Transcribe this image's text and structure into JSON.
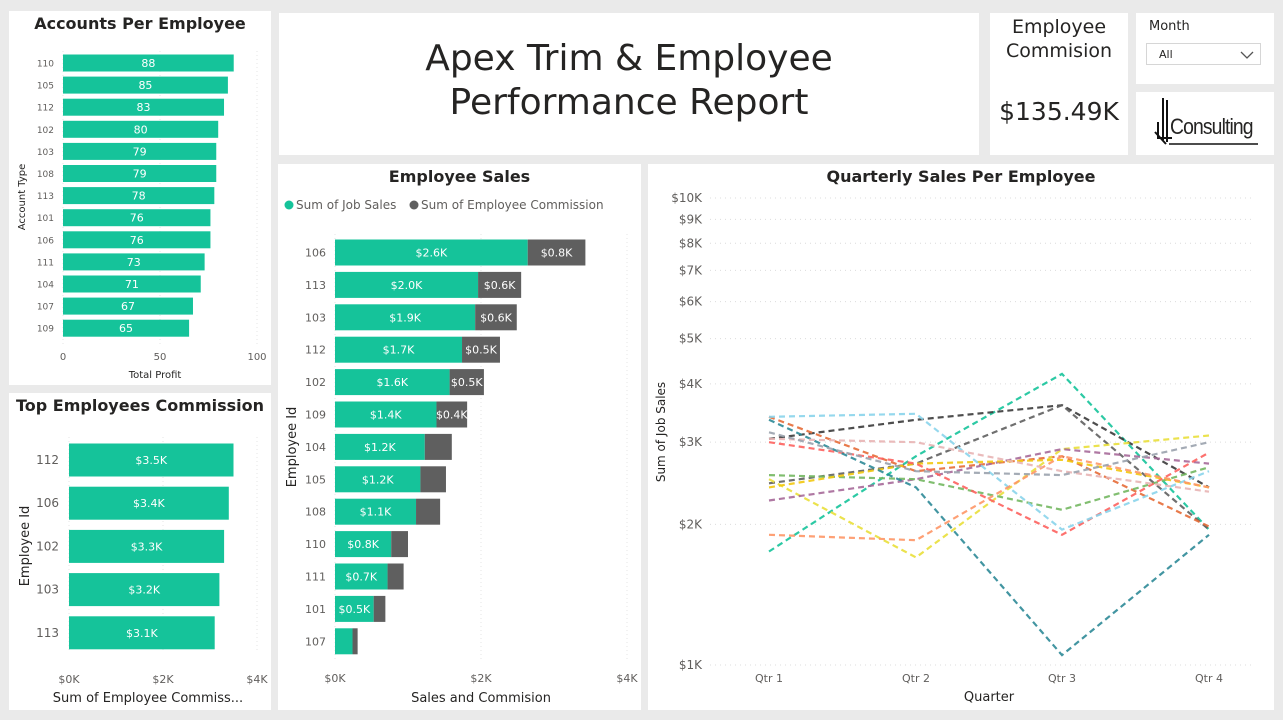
{
  "report": {
    "title_line1": "Apex Trim & Employee",
    "title_line2": "Performance Report"
  },
  "kpi": {
    "label_line1": "Employee",
    "label_line2": "Commision",
    "value": "$135.49K"
  },
  "slicer": {
    "label": "Month",
    "selected": "All"
  },
  "logo": {
    "text": "Consulting"
  },
  "colors": {
    "teal": "#15c39a",
    "grey": "#5f5f5f",
    "background": "#eaeaea"
  },
  "chart_data": [
    {
      "id": "accounts",
      "type": "bar",
      "orientation": "horizontal",
      "title": "Accounts Per Employee",
      "xlabel": "Total Profit",
      "ylabel": "Account Type",
      "xlim": [
        0,
        100
      ],
      "xticks": [
        "0",
        "50",
        "100"
      ],
      "categories": [
        "110",
        "105",
        "112",
        "102",
        "103",
        "108",
        "113",
        "101",
        "106",
        "111",
        "104",
        "107",
        "109"
      ],
      "values": [
        88,
        85,
        83,
        80,
        79,
        79,
        78,
        76,
        76,
        73,
        71,
        67,
        65
      ],
      "labels": [
        "88",
        "85",
        "83",
        "80",
        "79",
        "79",
        "78",
        "76",
        "76",
        "73",
        "71",
        "67",
        "65"
      ]
    },
    {
      "id": "topcomm",
      "type": "bar",
      "orientation": "horizontal",
      "title": "Top Employees Commission",
      "xlabel": "Sum of Employee Commiss...",
      "ylabel": "Employee Id",
      "xlim": [
        0,
        4000
      ],
      "xticks": [
        "$0K",
        "$2K",
        "$4K"
      ],
      "categories": [
        "112",
        "106",
        "102",
        "103",
        "113"
      ],
      "values": [
        3500,
        3400,
        3300,
        3200,
        3100
      ],
      "labels": [
        "$3.5K",
        "$3.4K",
        "$3.3K",
        "$3.2K",
        "$3.1K"
      ]
    },
    {
      "id": "empsales",
      "type": "bar",
      "orientation": "horizontal",
      "stacked": true,
      "title": "Employee Sales",
      "xlabel": "Sales and Commision",
      "ylabel": "Employee Id",
      "xlim": [
        0,
        4000
      ],
      "xticks": [
        "$0K",
        "$2K",
        "$4K"
      ],
      "legend": [
        "Sum of  Job Sales",
        "Sum of  Employee Commission"
      ],
      "categories": [
        "106",
        "113",
        "103",
        "112",
        "102",
        "109",
        "104",
        "105",
        "108",
        "110",
        "111",
        "101",
        "107"
      ],
      "series": [
        {
          "name": "Sum of  Job Sales",
          "values": [
            2640,
            1960,
            1920,
            1740,
            1570,
            1390,
            1230,
            1170,
            1110,
            770,
            720,
            530,
            240
          ],
          "labels": [
            "$2.6K",
            "$2.0K",
            "$1.9K",
            "$1.7K",
            "$1.6K",
            "$1.4K",
            "$1.2K",
            "$1.2K",
            "$1.1K",
            "$0.8K",
            "$0.7K",
            "$0.5K",
            ""
          ]
        },
        {
          "name": "Sum of  Employee Commission",
          "values": [
            790,
            590,
            570,
            520,
            470,
            420,
            370,
            350,
            330,
            230,
            220,
            160,
            70
          ],
          "labels": [
            "$0.8K",
            "$0.6K",
            "$0.6K",
            "$0.5K",
            "$0.5K",
            "$0.4K",
            "",
            "",
            "",
            "",
            "",
            "",
            ""
          ]
        }
      ]
    },
    {
      "id": "quarterly",
      "type": "line",
      "title": "Quarterly Sales Per Employee",
      "xlabel": "Quarter",
      "ylabel": "Sum of Job Sales",
      "yscale": "log",
      "ylim": [
        1000,
        10000
      ],
      "yticks": [
        1000,
        2000,
        3000,
        4000,
        5000,
        6000,
        7000,
        8000,
        9000,
        10000
      ],
      "ytick_labels": [
        "$1K",
        "$2K",
        "$3K",
        "$4K",
        "$5K",
        "$6K",
        "$7K",
        "$8K",
        "$9K",
        "$10K"
      ],
      "categories": [
        "Qtr 1",
        "Qtr 2",
        "Qtr 3",
        "Qtr 4"
      ],
      "series": [
        {
          "color": "#15c39a",
          "values": [
            1750,
            2800,
            4200,
            1950
          ]
        },
        {
          "color": "#3a3a3a",
          "values": [
            3050,
            3350,
            3600,
            2400
          ]
        },
        {
          "color": "#5f5f5f",
          "values": [
            2450,
            2700,
            3600,
            1950
          ]
        },
        {
          "color": "#e66c37",
          "values": [
            3400,
            2600,
            2800,
            1980
          ]
        },
        {
          "color": "#e9df3a",
          "values": [
            2500,
            1700,
            2900,
            3100
          ]
        },
        {
          "color": "#a66999",
          "values": [
            2250,
            2500,
            2900,
            2700
          ]
        },
        {
          "color": "#73b761",
          "values": [
            2550,
            2500,
            2150,
            2650
          ]
        },
        {
          "color": "#f2c80f",
          "values": [
            2400,
            2700,
            2750,
            2400
          ]
        },
        {
          "color": "#fd625e",
          "values": [
            3000,
            2700,
            1900,
            2850
          ]
        },
        {
          "color": "#8ad4eb",
          "values": [
            3400,
            3450,
            1950,
            2600
          ]
        },
        {
          "color": "#2e8a97",
          "values": [
            3350,
            2400,
            1050,
            1900
          ]
        },
        {
          "color": "#fe9666",
          "values": [
            1900,
            1850,
            2800,
            2400
          ]
        },
        {
          "color": "#e8b4b4",
          "values": [
            3050,
            3000,
            2600,
            2350
          ]
        },
        {
          "color": "#9aa2ad",
          "values": [
            3150,
            2600,
            2550,
            3000
          ]
        }
      ]
    }
  ]
}
